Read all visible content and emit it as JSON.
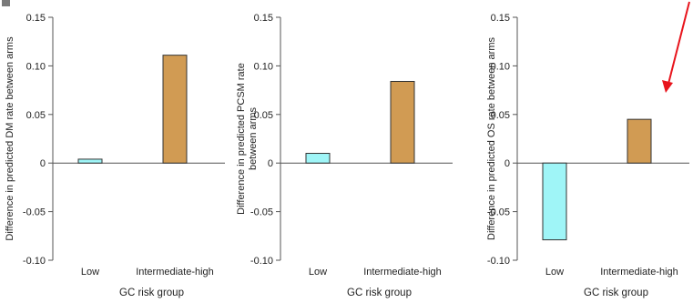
{
  "colors": {
    "low": "#9ff5f7",
    "intermediate_high": "#d19b53",
    "bar_stroke": "#333333",
    "axis": "#555555",
    "annotation_arrow": "#e8141c",
    "panel_marker": "#7a7a7a"
  },
  "chart_data": [
    {
      "type": "bar",
      "categories": [
        "Low",
        "Intermediate-high"
      ],
      "values": [
        0.004,
        0.111
      ],
      "xlabel": "GC risk group",
      "ylabel": "Difference in predicted DM rate between arms",
      "ylim": [
        -0.1,
        0.15
      ],
      "yticks": [
        "0.15",
        "0.10",
        "0.05",
        "0",
        "-0.05",
        "-0.10"
      ],
      "ytick_values": [
        0.15,
        0.1,
        0.05,
        0,
        -0.05,
        -0.1
      ]
    },
    {
      "type": "bar",
      "categories": [
        "Low",
        "Intermediate-high"
      ],
      "values": [
        0.01,
        0.084
      ],
      "xlabel": "GC risk group",
      "ylabel_lines": [
        "Difference in predicted PCSM rate",
        "between arms"
      ],
      "ylim": [
        -0.1,
        0.15
      ],
      "yticks": [
        "0.15",
        "0.10",
        "0.05",
        "0",
        "-0.05",
        "-0.10"
      ],
      "ytick_values": [
        0.15,
        0.1,
        0.05,
        0,
        -0.05,
        -0.1
      ]
    },
    {
      "type": "bar",
      "categories": [
        "Low",
        "Intermediate-high"
      ],
      "values": [
        -0.079,
        0.045
      ],
      "xlabel": "GC risk group",
      "ylabel": "Difference in predicted OS rate between arms",
      "ylim": [
        -0.1,
        0.15
      ],
      "yticks": [
        "0.15",
        "0.10",
        "0.05",
        "0",
        "-0.05",
        "-0.10"
      ],
      "ytick_values": [
        0.15,
        0.1,
        0.05,
        0,
        -0.05,
        -0.1
      ],
      "annotation": "arrow"
    }
  ]
}
